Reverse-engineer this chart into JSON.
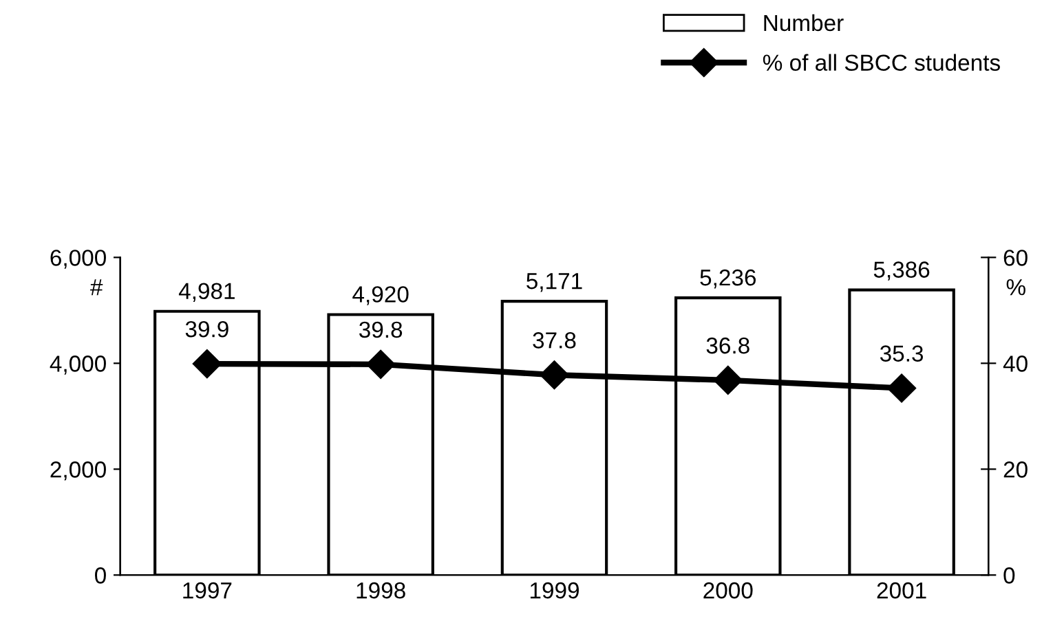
{
  "chart_data": {
    "type": "bar",
    "categories": [
      "1997",
      "1998",
      "1999",
      "2000",
      "2001"
    ],
    "series": [
      {
        "name": "Number",
        "color": "#ffffff",
        "values": [
          4981,
          4920,
          5171,
          5236,
          5386
        ],
        "value_labels": [
          "4,981",
          "4,920",
          "5,171",
          "5,236",
          "5,386"
        ]
      },
      {
        "name": "% of all SBCC students",
        "type": "line",
        "axis": "y2",
        "color": "#000000",
        "marker": "diamond",
        "values": [
          39.9,
          39.8,
          37.8,
          36.8,
          35.3
        ],
        "value_labels": [
          "39.9",
          "39.8",
          "37.8",
          "36.8",
          "35.3"
        ]
      }
    ],
    "ylabel": "#",
    "y2label": "%",
    "ylim": [
      0,
      6000
    ],
    "yticks": [
      {
        "value": 0,
        "label": "0"
      },
      {
        "value": 2000,
        "label": "2,000"
      },
      {
        "value": 4000,
        "label": "4,000"
      },
      {
        "value": 6000,
        "label": "6,000"
      }
    ],
    "y2lim": [
      0,
      60
    ],
    "y2ticks": [
      0,
      20,
      40,
      60
    ],
    "legend": "top right",
    "grid": false
  }
}
